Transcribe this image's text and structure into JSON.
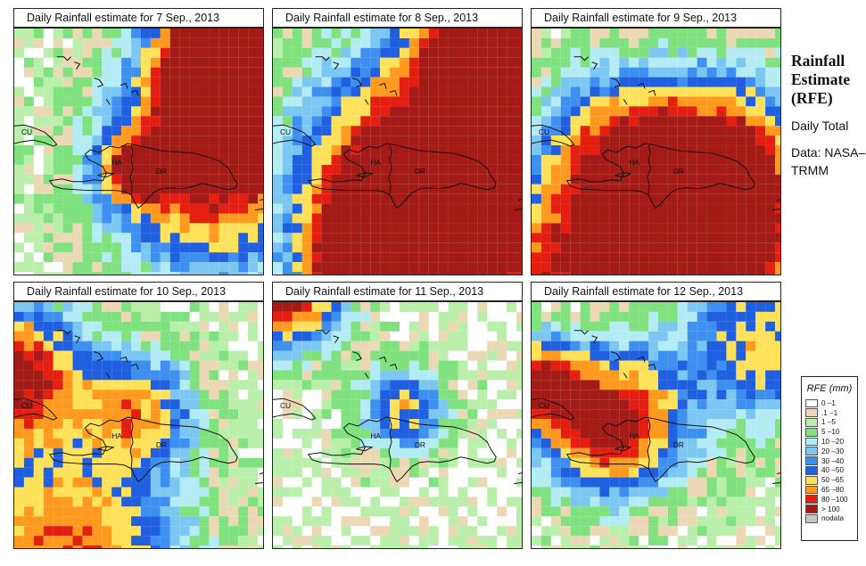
{
  "panels": [
    {
      "title": "Daily Rainfall estimate for  7 Sep., 2013",
      "seed": 7,
      "heavy": [
        [
          283,
          20,
          30,
          4
        ],
        [
          250,
          90,
          18,
          2.6
        ],
        [
          225,
          158,
          38,
          1.5
        ],
        [
          140,
          160,
          12,
          1.3
        ]
      ]
    },
    {
      "title": "Daily Rainfall estimate for  8 Sep., 2013",
      "seed": 8,
      "heavy": [
        [
          260,
          25,
          28,
          2.6
        ],
        [
          130,
          265,
          26,
          2.6
        ],
        [
          250,
          210,
          40,
          1.6
        ],
        [
          150,
          160,
          40,
          1.4
        ]
      ]
    },
    {
      "title": "Daily Rainfall estimate for  9 Sep., 2013",
      "seed": 9,
      "heavy": [
        [
          195,
          240,
          30,
          2.8
        ],
        [
          100,
          150,
          30,
          1.4
        ],
        [
          30,
          285,
          30,
          1.3
        ],
        [
          225,
          140,
          30,
          1.1
        ]
      ]
    },
    {
      "title": "Daily Rainfall estimate for  10 Sep., 2013",
      "seed": 10,
      "heavy": [
        [
          0,
          420,
          25,
          1.6
        ],
        [
          60,
          620,
          40,
          1.3
        ],
        [
          140,
          460,
          20,
          1.0
        ]
      ]
    },
    {
      "title": "Daily Rainfall estimate for  11 Sep., 2013",
      "seed": 11,
      "heavy": [
        [
          15,
          330,
          20,
          1.6
        ],
        [
          150,
          460,
          15,
          1.0
        ]
      ]
    },
    {
      "title": "Daily Rainfall estimate for  12 Sep., 2013",
      "seed": 12,
      "heavy": [
        [
          90,
          475,
          25,
          1.7
        ],
        [
          10,
          430,
          15,
          1.5
        ],
        [
          260,
          380,
          30,
          1.0
        ]
      ]
    }
  ],
  "map_labels": {
    "cuba": "CU",
    "haiti": "HA",
    "dominican_republic": "DR"
  },
  "side": {
    "title": "Rainfall Estimate (RFE)",
    "subtitle": "Daily Total",
    "source": "Data: NASA–TRMM"
  },
  "legend": {
    "title": "RFE (mm)",
    "items": [
      {
        "label": "0 –1",
        "color": "#ffffff"
      },
      {
        "label": ".1 –1",
        "color": "#ebd8b4"
      },
      {
        "label": "1 –5",
        "color": "#b9efab"
      },
      {
        "label": "5 –10",
        "color": "#7fe27f"
      },
      {
        "label": "10 –20",
        "color": "#b4ecf5"
      },
      {
        "label": "20 –30",
        "color": "#7cc7f2"
      },
      {
        "label": "30 –40",
        "color": "#3d8ff0"
      },
      {
        "label": "40 –50",
        "color": "#1f5fe0"
      },
      {
        "label": "50 –65",
        "color": "#ffe25a"
      },
      {
        "label": "65 –80",
        "color": "#ff9a1f"
      },
      {
        "label": "80 –100",
        "color": "#e41e10"
      },
      {
        "label": "> 100",
        "color": "#a31a17"
      },
      {
        "label": "nodata",
        "color": "#c8c8c8"
      }
    ]
  }
}
